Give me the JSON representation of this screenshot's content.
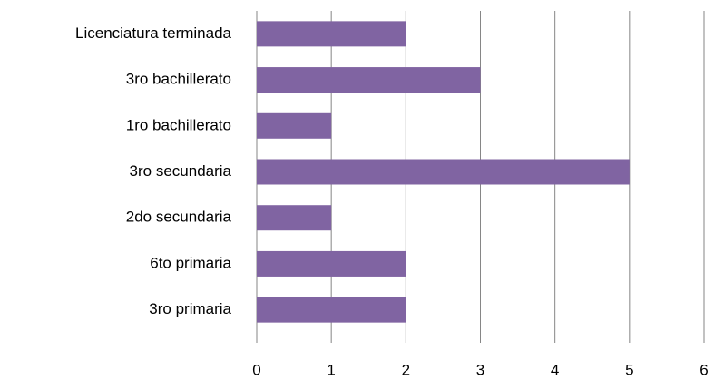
{
  "chart_data": {
    "type": "barh",
    "categories": [
      "Licenciatura terminada",
      "3ro bachillerato",
      "1ro bachillerato",
      "3ro secundaria",
      "2do secundaria",
      "6to primaria",
      "3ro primaria"
    ],
    "values": [
      2,
      3,
      1,
      5,
      1,
      2,
      2
    ],
    "color": "#8064a2",
    "xlim": [
      0,
      6
    ],
    "xticks": [
      0,
      1,
      2,
      3,
      4,
      5,
      6
    ],
    "grid": true
  }
}
